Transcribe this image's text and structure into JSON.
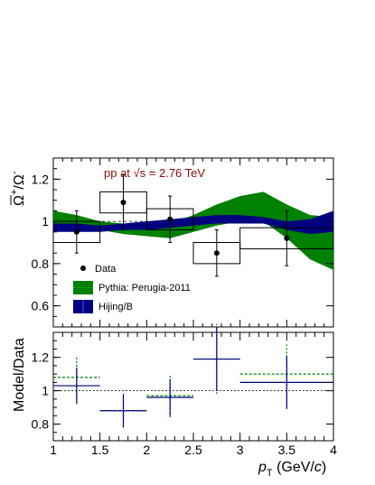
{
  "chart_data": [
    {
      "type": "scatter",
      "panel": "ratio",
      "annotation": "pp at √s = 2.76 TeV",
      "ylabel_main": "Ω",
      "ylabel_num_sign": "+",
      "ylabel_den_sign": "-",
      "ylim": [
        0.5,
        1.3
      ],
      "y_ticks": [
        "0.6",
        "0.8",
        "1",
        "1.2"
      ],
      "xlim": [
        1,
        4
      ],
      "legend": {
        "position": "lower-left",
        "entries": [
          "Data",
          "Pythia: Perugia-2011",
          "Hijing/B"
        ]
      },
      "colors": {
        "data": "#000000",
        "pythia": "#008000",
        "hijing": "#000080",
        "annotation": "#8b0a0a"
      },
      "data": {
        "name": "Data",
        "x": [
          1.25,
          1.75,
          2.25,
          2.75,
          3.5
        ],
        "x_low": [
          1.0,
          1.5,
          2.0,
          2.5,
          3.0
        ],
        "x_high": [
          1.5,
          2.0,
          2.5,
          3.0,
          4.0
        ],
        "y": [
          0.95,
          1.09,
          1.01,
          0.85,
          0.92
        ],
        "stat_err": [
          0.1,
          0.13,
          0.11,
          0.11,
          0.13
        ],
        "sys_err": [
          0.05,
          0.05,
          0.05,
          0.05,
          0.05
        ]
      },
      "pythia": {
        "name": "Pythia: Perugia-2011",
        "x": [
          1.0,
          1.25,
          1.5,
          1.75,
          2.0,
          2.25,
          2.5,
          2.75,
          3.0,
          3.25,
          3.5,
          3.75,
          4.0
        ],
        "low": [
          0.98,
          0.97,
          0.96,
          0.94,
          0.93,
          0.92,
          0.95,
          0.98,
          1.0,
          1.0,
          0.92,
          0.82,
          0.77
        ],
        "high": [
          1.05,
          1.03,
          1.0,
          0.99,
          0.98,
          0.99,
          1.03,
          1.08,
          1.12,
          1.14,
          1.08,
          1.03,
          1.02
        ]
      },
      "hijing": {
        "name": "Hijing/B",
        "x": [
          1.0,
          1.25,
          1.5,
          1.75,
          2.0,
          2.25,
          2.5,
          2.75,
          3.0,
          3.25,
          3.5,
          3.75,
          4.0
        ],
        "low": [
          0.95,
          0.95,
          0.95,
          0.96,
          0.96,
          0.97,
          0.98,
          0.99,
          0.99,
          0.99,
          0.96,
          0.94,
          0.95
        ],
        "high": [
          0.99,
          0.99,
          0.98,
          0.99,
          1.0,
          1.01,
          1.02,
          1.03,
          1.03,
          1.02,
          1.0,
          1.01,
          1.05
        ]
      }
    },
    {
      "type": "scatter",
      "panel": "model-over-data",
      "ylabel": "Model/Data",
      "xlabel_symbol": "p",
      "xlabel_sub": "T",
      "xlabel_unit_prefix": " (GeV/",
      "xlabel_unit_var": "c",
      "xlabel_unit_suffix": ")",
      "ylim": [
        0.7,
        1.35
      ],
      "y_ticks": [
        "0.8",
        "1",
        "1.2"
      ],
      "xlim": [
        1,
        4
      ],
      "x_ticks": [
        "1",
        "1.5",
        "2",
        "2.5",
        "3",
        "3.5",
        "4"
      ],
      "hijing": {
        "x": [
          1.25,
          1.75,
          2.25,
          2.75,
          3.5
        ],
        "x_low": [
          1.0,
          1.5,
          2.0,
          2.5,
          3.0
        ],
        "x_high": [
          1.5,
          2.0,
          2.5,
          3.0,
          4.0
        ],
        "y": [
          1.03,
          0.88,
          0.96,
          1.19,
          1.05
        ],
        "err": [
          0.11,
          0.1,
          0.11,
          0.19,
          0.16
        ]
      },
      "pythia": {
        "x": [
          1.25,
          1.75,
          2.25,
          2.75,
          3.5
        ],
        "x_low": [
          1.0,
          1.5,
          2.0,
          2.5,
          3.0
        ],
        "x_high": [
          1.5,
          2.0,
          2.5,
          3.0,
          4.0
        ],
        "y": [
          1.08,
          0.88,
          0.97,
          1.19,
          1.1
        ],
        "err": [
          0.13,
          0.1,
          0.13,
          0.21,
          0.18
        ]
      }
    }
  ]
}
